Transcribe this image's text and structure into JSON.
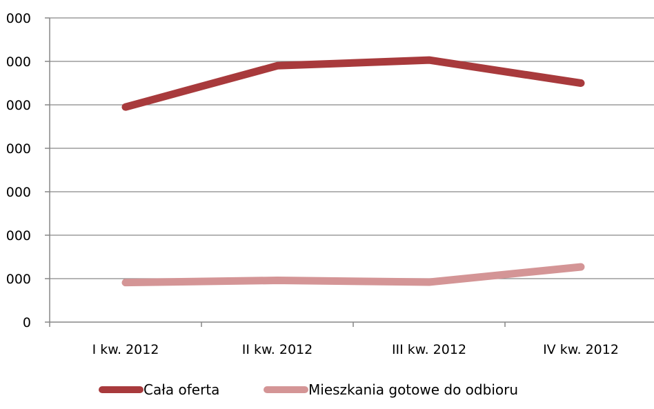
{
  "chart_data": {
    "type": "line",
    "categories": [
      "I kw. 2012",
      "II kw. 2012",
      "III kw. 2012",
      "IV kw. 2012"
    ],
    "series": [
      {
        "name": "Cała oferta",
        "values": [
          4950,
          5900,
          6030,
          5500
        ],
        "color": "#a83a3c"
      },
      {
        "name": "Mieszkania gotowe do odbioru",
        "values": [
          910,
          960,
          920,
          1270
        ],
        "color": "#d49596"
      }
    ],
    "y_tick_labels": [
      "0",
      "000",
      "000",
      "000",
      "000",
      "000",
      "000",
      "000"
    ],
    "ylim": [
      0,
      7000
    ],
    "y_step": 1000,
    "grid": true,
    "legend_position": "bottom"
  }
}
